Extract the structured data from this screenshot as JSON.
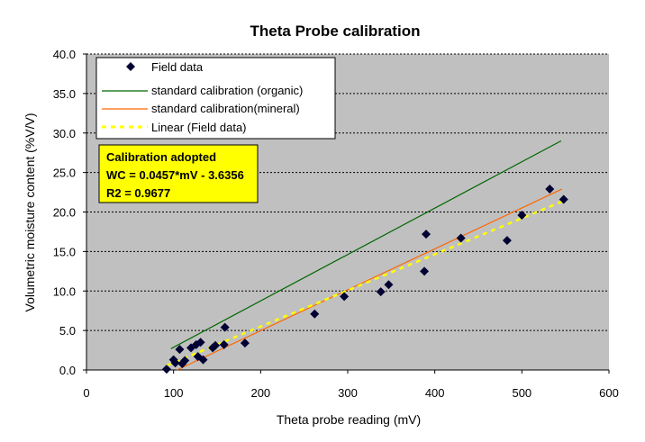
{
  "chart_data": {
    "type": "scatter",
    "title": "Theta Probe calibration",
    "xlabel": "Theta probe reading (mV)",
    "ylabel": "Volumetric moisture content (%V/V)",
    "xlim": [
      0,
      600
    ],
    "ylim": [
      0,
      40
    ],
    "x_ticks": [
      "0",
      "100",
      "200",
      "300",
      "400",
      "500",
      "600"
    ],
    "y_ticks": [
      "0.0",
      "5.0",
      "10.0",
      "15.0",
      "20.0",
      "25.0",
      "30.0",
      "35.0",
      "40.0"
    ],
    "plot_background": "#c0c0c0",
    "grid": "horizontal dotted",
    "legend_position": "top-left",
    "series": [
      {
        "name": "Field data",
        "kind": "points",
        "marker": "diamond",
        "color": "#000033",
        "points": [
          [
            92,
            0.1
          ],
          [
            100,
            1.3
          ],
          [
            102,
            0.9
          ],
          [
            107,
            2.6
          ],
          [
            110,
            0.8
          ],
          [
            113,
            1.2
          ],
          [
            120,
            2.8
          ],
          [
            126,
            3.2
          ],
          [
            128,
            1.7
          ],
          [
            131,
            3.5
          ],
          [
            134,
            1.3
          ],
          [
            145,
            2.8
          ],
          [
            148,
            3.1
          ],
          [
            158,
            3.2
          ],
          [
            159,
            5.4
          ],
          [
            182,
            3.4
          ],
          [
            262,
            7.1
          ],
          [
            296,
            9.3
          ],
          [
            338,
            9.9
          ],
          [
            347,
            10.8
          ],
          [
            388,
            12.5
          ],
          [
            390,
            17.2
          ],
          [
            430,
            16.7
          ],
          [
            483,
            16.4
          ],
          [
            500,
            19.6
          ],
          [
            532,
            22.9
          ],
          [
            548,
            21.6
          ]
        ]
      },
      {
        "name": "standard calibration (organic)",
        "kind": "line",
        "color": "#006600",
        "dash": "solid",
        "points": [
          [
            97,
            2.7
          ],
          [
            545,
            29.0
          ]
        ]
      },
      {
        "name": "standard calibration(mineral)",
        "kind": "line",
        "color": "#ff6600",
        "dash": "solid",
        "points": [
          [
            104,
            0.0
          ],
          [
            546,
            22.9
          ]
        ]
      },
      {
        "name": "Linear (Field data)",
        "kind": "line",
        "color": "#ffff00",
        "dash": "dotted",
        "points": [
          [
            92,
            0.57
          ],
          [
            548,
            21.41
          ]
        ]
      }
    ],
    "annotation": {
      "lines": [
        "Calibration adopted",
        "WC = 0.0457*mV - 3.6356",
        "R2 = 0.9677"
      ],
      "background": "#ffff00"
    }
  }
}
